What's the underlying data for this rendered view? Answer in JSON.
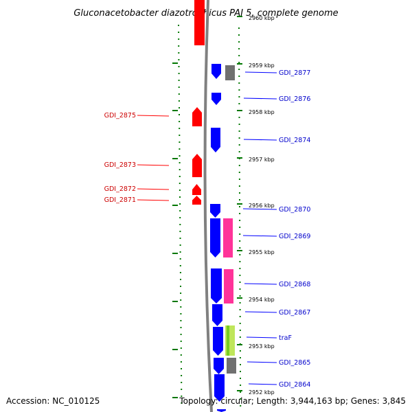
{
  "title": "Gluconacetobacter diazotrophicus PAI 5, complete genome",
  "footer": {
    "accession": "Accession: NC_010125",
    "topology": "Topology: circular; Length: 3,944,163 bp; Genes: 3,845"
  },
  "colors": {
    "forward": "#ff0000",
    "reverse": "#0000ff",
    "label_forward": "#cc0000",
    "label_reverse": "#0000cc",
    "tick": "#007700",
    "backbone": "#808080",
    "pink": "#ff3399",
    "grey": "#707070",
    "lime": "#bfe65a"
  },
  "kbp_ticks": [
    "2960 kbp",
    "2959 kbp",
    "2958 kbp",
    "2957 kbp",
    "2956 kbp",
    "2955 kbp",
    "2954 kbp",
    "2953 kbp",
    "2952 kbp"
  ],
  "forward_genes": [
    "GDI_2875",
    "GDI_2873",
    "GDI_2872",
    "GDI_2871"
  ],
  "reverse_genes": [
    "GDI_2877",
    "GDI_2876",
    "GDI_2874",
    "GDI_2870",
    "GDI_2869",
    "GDI_2868",
    "GDI_2867",
    "traF",
    "GDI_2865",
    "GDI_2864"
  ]
}
